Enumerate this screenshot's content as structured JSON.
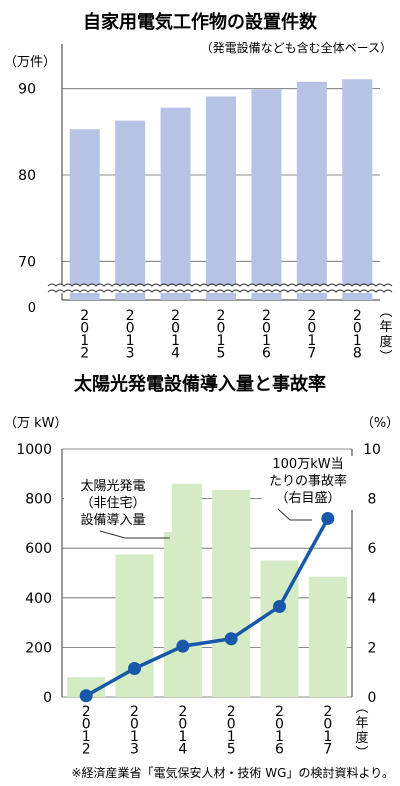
{
  "chart_data": [
    {
      "type": "bar",
      "title": "自家用電気工作物の設置件数",
      "subtitle": "（発電設備なども含む全体ベース）",
      "ylabel": "（万件）",
      "xlabel": "（年度）",
      "categories": [
        "2012",
        "2013",
        "2014",
        "2015",
        "2016",
        "2017",
        "2018"
      ],
      "values": [
        85.3,
        86.3,
        87.8,
        89.1,
        89.9,
        90.8,
        91.1
      ],
      "ylim": [
        65,
        95
      ],
      "yticks": [
        "70",
        "80",
        "90"
      ],
      "axis_break": true,
      "zero_label": "0",
      "grid": true,
      "bar_color": "#b6c3e4"
    },
    {
      "type": "bar+line",
      "title": "太陽光発電設備導入量と事故率",
      "ylabel_left": "（万 kW）",
      "ylabel_right": "（%）",
      "xlabel": "（年度）",
      "categories": [
        "2012",
        "2013",
        "2014",
        "2015",
        "2016",
        "2017"
      ],
      "series": [
        {
          "name": "太陽光発電（非住宅）設備導入量",
          "kind": "bar",
          "axis": "left",
          "values": [
            80,
            575,
            860,
            835,
            550,
            485
          ],
          "color": "#d5ebc6"
        },
        {
          "name": "100万kW当たりの事故率（右目盛）",
          "kind": "line",
          "axis": "right",
          "values": [
            0.05,
            1.15,
            2.05,
            2.35,
            3.65,
            7.2
          ],
          "color": "#1957a8"
        }
      ],
      "ylim_left": [
        0,
        1000
      ],
      "ylim_right": [
        0,
        10
      ],
      "yticks_left": [
        "0",
        "200",
        "400",
        "600",
        "800",
        "1000"
      ],
      "yticks_right": [
        "0",
        "2",
        "4",
        "6",
        "8",
        "10"
      ],
      "annotations": {
        "bar_label": [
          "太陽光発電",
          "（非住宅）",
          "設備導入量"
        ],
        "line_label": [
          "100万kW当",
          "たりの事故率",
          "（右目盛）"
        ]
      },
      "grid": true
    }
  ],
  "footnote": "※経済産業省「電気保安人材・技術 WG」の検討資料より。"
}
